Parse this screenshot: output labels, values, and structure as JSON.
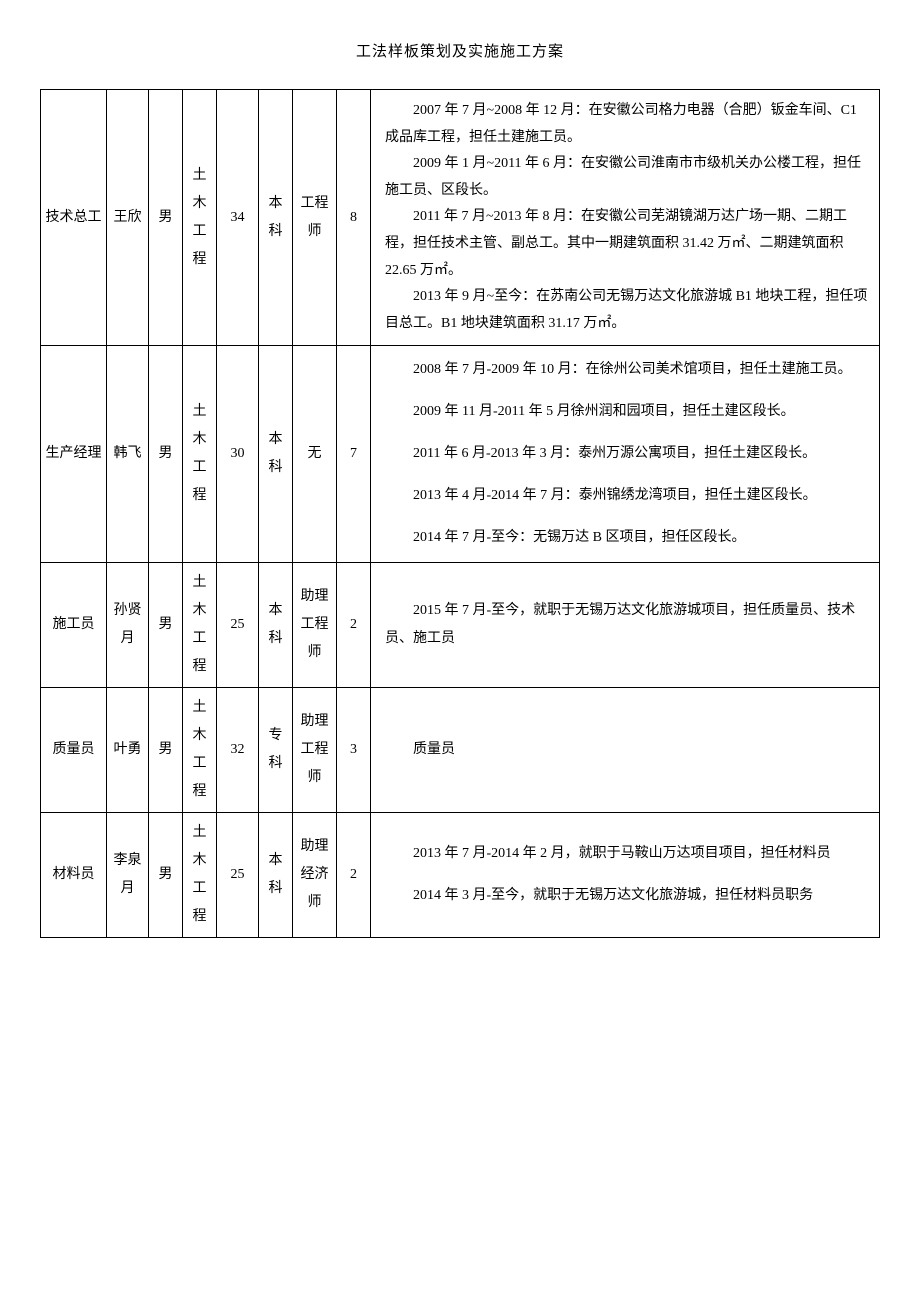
{
  "doc_title": "工法样板策划及实施施工方案",
  "rows": [
    {
      "role": "技术总工",
      "name": "王欣",
      "gender": "男",
      "major": "土木工程",
      "age": "34",
      "edu": "本科",
      "title": "工程师",
      "years": "8",
      "desc_paras": [
        "2007 年 7 月~2008 年 12 月：在安徽公司格力电器（合肥）钣金车间、C1 成品库工程，担任土建施工员。",
        "2009 年 1 月~2011 年 6 月：在安徽公司淮南市市级机关办公楼工程，担任施工员、区段长。",
        "2011 年 7 月~2013 年 8 月：在安徽公司芜湖镜湖万达广场一期、二期工程，担任技术主管、副总工。其中一期建筑面积 31.42 万㎡、二期建筑面积 22.65 万㎡。",
        "2013 年 9 月~至今：在苏南公司无锡万达文化旅游城 B1 地块工程，担任项目总工。B1 地块建筑面积 31.17 万㎡。"
      ]
    },
    {
      "role": "生产经理",
      "name": "韩飞",
      "gender": "男",
      "major": "土木工程",
      "age": "30",
      "edu": "本科",
      "title": "无",
      "years": "7",
      "desc_paras": [
        "2008 年 7 月-2009 年 10 月：在徐州公司美术馆项目，担任土建施工员。",
        "2009 年 11 月-2011 年 5 月徐州润和园项目，担任土建区段长。",
        "2011 年 6 月-2013 年 3 月：泰州万源公寓项目，担任土建区段长。",
        "2013 年 4 月-2014 年 7 月：泰州锦绣龙湾项目，担任土建区段长。",
        "2014 年 7 月-至今：无锡万达 B 区项目，担任区段长。"
      ]
    },
    {
      "role": "施工员",
      "name": "孙贤月",
      "gender": "男",
      "major": "土木工程",
      "age": "25",
      "edu": "本科",
      "title": "助理工程师",
      "years": "2",
      "desc_paras": [
        "2015 年 7 月-至今，就职于无锡万达文化旅游城项目，担任质量员、技术员、施工员"
      ]
    },
    {
      "role": "质量员",
      "name": "叶勇",
      "gender": "男",
      "major": "土木工程",
      "age": "32",
      "edu": "专科",
      "title": "助理工程师",
      "years": "3",
      "desc_paras": [
        "质量员"
      ]
    },
    {
      "role": "材料员",
      "name": "李泉月",
      "gender": "男",
      "major": "土木工程",
      "age": "25",
      "edu": "本科",
      "title": "助理经济师",
      "years": "2",
      "desc_paras": [
        "2013 年 7 月-2014 年 2 月，就职于马鞍山万达项目项目，担任材料员",
        "2014 年 3 月-至今，就职于无锡万达文化旅游城，担任材料员职务"
      ]
    }
  ]
}
